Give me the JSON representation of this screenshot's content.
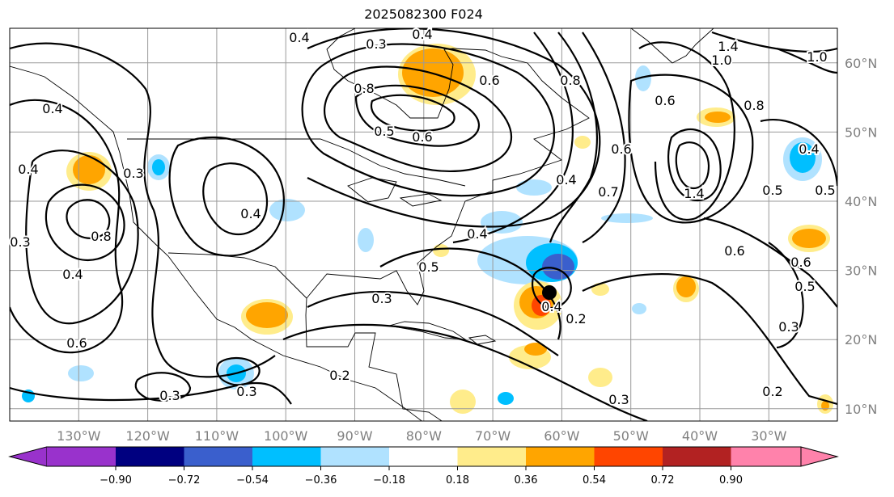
{
  "title": "2025082300 F024",
  "map": {
    "lon_labels": [
      "130°W",
      "120°W",
      "110°W",
      "100°W",
      "90°W",
      "80°W",
      "70°W",
      "60°W",
      "50°W",
      "40°W",
      "30°W"
    ],
    "lat_labels": [
      "60°N",
      "50°N",
      "40°N",
      "30°N",
      "20°N",
      "10°N"
    ],
    "contour_labels": [
      "0.4",
      "0.3",
      "0.4",
      "0.8",
      "0.5",
      "0.6",
      "0.8",
      "0.6",
      "0.7",
      "0.4",
      "0.6",
      "1.4",
      "1.0",
      "1.0",
      "0.8",
      "0.4",
      "0.5",
      "0.5",
      "1.4",
      "0.6",
      "0.6",
      "0.5",
      "0.3",
      "0.2",
      "0.3",
      "0.2",
      "0.4",
      "0.5",
      "0.4",
      "0.3",
      "0.4",
      "0.8",
      "0.4",
      "0.6",
      "0.3",
      "0.3",
      "0.4",
      "0.3",
      "0.4",
      "0.3",
      "0.6",
      "0.2"
    ],
    "storm_marker": "black-dot"
  },
  "colorbar": {
    "ticks": [
      "−0.90",
      "−0.72",
      "−0.54",
      "−0.36",
      "−0.18",
      "0.18",
      "0.36",
      "0.54",
      "0.72",
      "0.90"
    ],
    "colors": [
      "#9932cc",
      "#000080",
      "#3a5fcd",
      "#00bfff",
      "#b0e2ff",
      "#ffffff",
      "#ffec8b",
      "#ffa500",
      "#ff4500",
      "#b22222",
      "#ff82ab"
    ]
  },
  "shading_colors": {
    "light_blue": "#b0e2ff",
    "sky_blue": "#00bfff",
    "royal_blue": "#3a5fcd",
    "yellow": "#ffec8b",
    "orange": "#ffa500",
    "red": "#ff4500"
  }
}
